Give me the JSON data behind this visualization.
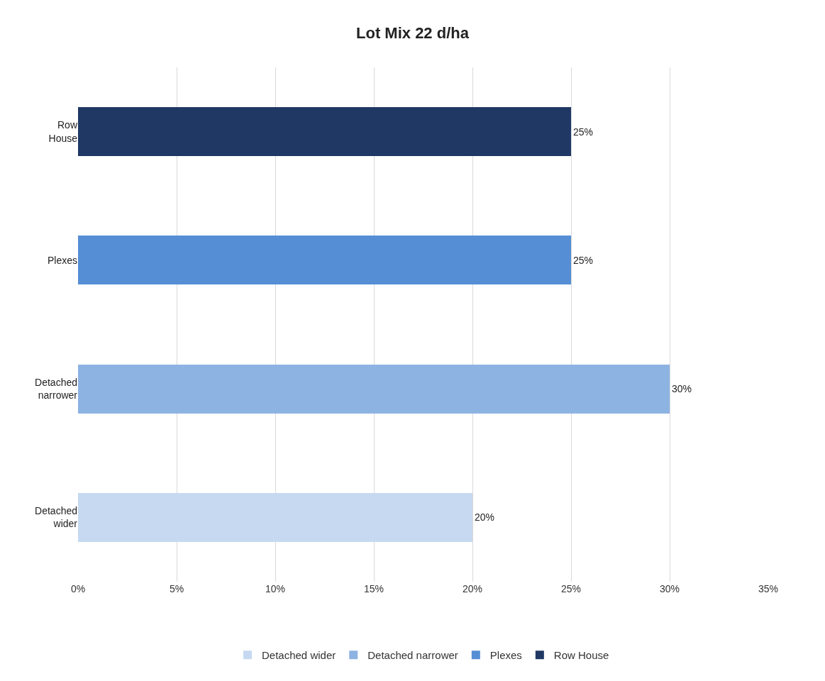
{
  "chart_data": {
    "type": "bar",
    "title": "Lot Mix 22 d/ha",
    "orientation": "horizontal",
    "stacked": true,
    "categories": [
      "Row House",
      "Plexes",
      "Detached narrower",
      "Detached wider"
    ],
    "series": [
      {
        "name": "Detached wider",
        "color": "#c6d9f1",
        "values": [
          null,
          null,
          null,
          20
        ],
        "value_labels": [
          null,
          null,
          null,
          "20%"
        ]
      },
      {
        "name": "Detached narrower",
        "color": "#8db3e2",
        "values": [
          null,
          null,
          30,
          null
        ],
        "value_labels": [
          null,
          null,
          "30%",
          null
        ]
      },
      {
        "name": "Plexes",
        "color": "#558ed5",
        "values": [
          null,
          25,
          null,
          null
        ],
        "value_labels": [
          null,
          "25%",
          null,
          null
        ]
      },
      {
        "name": "Row House",
        "color": "#1f3864",
        "values": [
          25,
          null,
          null,
          null
        ],
        "value_labels": [
          "25%",
          null,
          null,
          null
        ]
      }
    ],
    "xlim": [
      0,
      35
    ],
    "xticks": [
      {
        "value": 0,
        "label": "0%"
      },
      {
        "value": 5,
        "label": "5%"
      },
      {
        "value": 10,
        "label": "10%"
      },
      {
        "value": 15,
        "label": "15%"
      },
      {
        "value": 20,
        "label": "20%"
      },
      {
        "value": 25,
        "label": "25%"
      },
      {
        "value": 30,
        "label": "30%"
      },
      {
        "value": 35,
        "label": "35%"
      }
    ],
    "grid": "x",
    "legend": "bottom"
  }
}
